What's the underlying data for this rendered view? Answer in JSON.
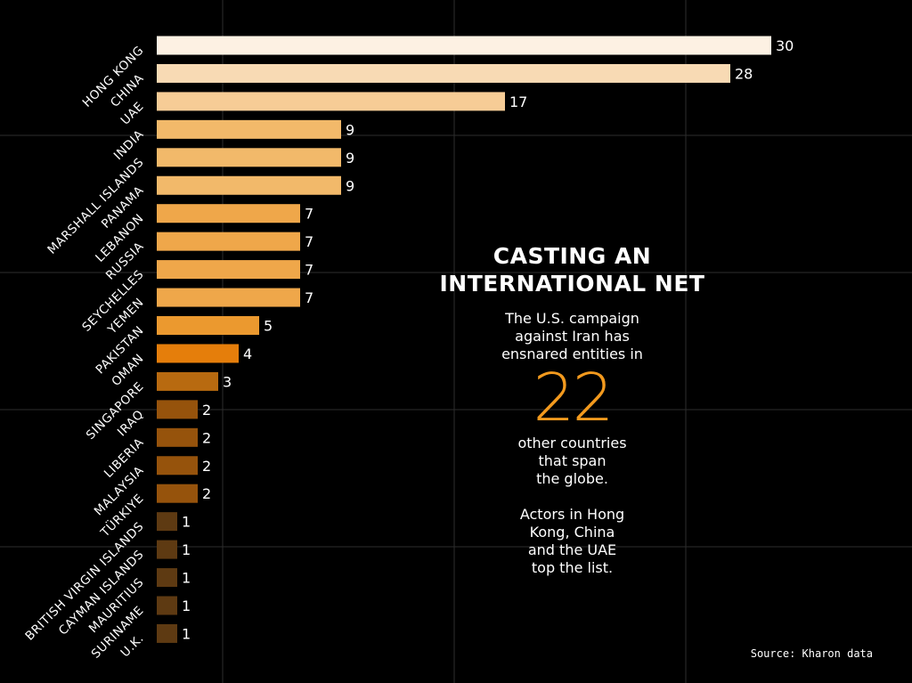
{
  "chart_data": {
    "type": "bar",
    "orientation": "horizontal",
    "categories": [
      "HONG KONG",
      "CHINA",
      "UAE",
      "INDIA",
      "MARSHALL ISLANDS",
      "PANAMA",
      "LEBANON",
      "RUSSIA",
      "SEYCHELLES",
      "YEMEN",
      "PAKISTAN",
      "OMAN",
      "SINGAPORE",
      "IRAQ",
      "LIBERIA",
      "MALAYSIA",
      "TÜRKIYE",
      "BRITISH VIRGIN ISLANDS",
      "CAYMAN ISLANDS",
      "MAURITIUS",
      "SURINAME",
      "U.K."
    ],
    "values": [
      30,
      28,
      17,
      9,
      9,
      9,
      7,
      7,
      7,
      7,
      5,
      4,
      3,
      2,
      2,
      2,
      2,
      1,
      1,
      1,
      1,
      1
    ],
    "colors": [
      "#fdf1e3",
      "#f8dab4",
      "#f6cc96",
      "#f2b96a",
      "#f2b96a",
      "#f2b96a",
      "#efa74a",
      "#efa74a",
      "#efa74a",
      "#efa74a",
      "#eb992f",
      "#e57e0b",
      "#b86a10",
      "#96530c",
      "#96530c",
      "#96530c",
      "#96530c",
      "#5e3a12",
      "#5e3a12",
      "#5e3a12",
      "#5e3a12",
      "#5e3a12"
    ],
    "xlim": [
      0,
      30
    ],
    "grid": true,
    "title": "CASTING AN INTERNATIONAL NET"
  },
  "panel": {
    "title_line1": "CASTING AN",
    "title_line2": "INTERNATIONAL NET",
    "intro_line1": "The U.S. campaign",
    "intro_line2": "against Iran has",
    "intro_line3": "ensnared entities in",
    "big_number": "22",
    "mid_line1": "other countries",
    "mid_line2": "that span",
    "mid_line3": "the globe.",
    "outro_line1": "Actors in Hong",
    "outro_line2": "Kong, China",
    "outro_line3": "and the UAE",
    "outro_line4": "top the list."
  },
  "source": "Source: Kharon data",
  "colors": {
    "background": "#000000",
    "grid": "#2e2e2e",
    "accent": "#f39a1e"
  }
}
